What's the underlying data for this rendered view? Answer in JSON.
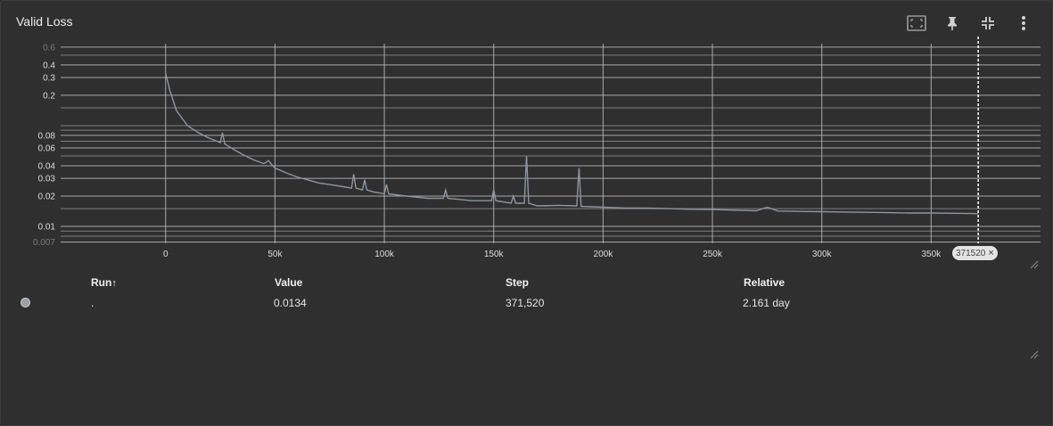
{
  "card": {
    "title": "Valid Loss"
  },
  "toolbar": {
    "icons": [
      "fit-to-data-icon",
      "pin-icon",
      "collapse-icon",
      "more-vertical-icon"
    ]
  },
  "colors": {
    "line": "#8e959e",
    "background": "#2f2f2f",
    "grid": "#bdbdbd"
  },
  "cursor_badge": {
    "label": "371520",
    "close": "×"
  },
  "runs_table": {
    "headers": {
      "run": "Run",
      "value": "Value",
      "step": "Step",
      "relative": "Relative"
    },
    "sort_arrow": "↑",
    "rows": [
      {
        "run": ".",
        "value": "0.0134",
        "step": "371,520",
        "relative": "2.161 day",
        "color": "#9aa0a6"
      }
    ]
  },
  "chart_data": {
    "type": "line",
    "title": "Valid Loss",
    "xlabel": "",
    "ylabel": "",
    "y_scale": "log",
    "xlim": [
      -48000,
      400000
    ],
    "ylim": [
      0.0068,
      0.65
    ],
    "x_ticks": [
      0,
      50000,
      100000,
      150000,
      200000,
      250000,
      300000,
      350000
    ],
    "x_tick_labels": [
      "0",
      "50k",
      "100k",
      "150k",
      "200k",
      "250k",
      "300k",
      "350k"
    ],
    "y_ticks": [
      0.6,
      0.4,
      0.3,
      0.2,
      0.08,
      0.06,
      0.04,
      0.03,
      0.02,
      0.01,
      0.007
    ],
    "y_tick_labels": [
      "0.6",
      "0.4",
      "0.3",
      "0.2",
      "0.08",
      "0.06",
      "0.04",
      "0.03",
      "0.02",
      "0.01",
      "0.007"
    ],
    "grid": true,
    "cursor_step": 371520,
    "series": [
      {
        "values_x": [
          0,
          2000,
          5000,
          10000,
          15000,
          20000,
          25000,
          26000,
          27000,
          30000,
          35000,
          40000,
          45000,
          47000,
          49000,
          50000,
          55000,
          60000,
          65000,
          70000,
          75000,
          80000,
          85000,
          86000,
          87000,
          90000,
          91000,
          92000,
          95000,
          100000,
          101000,
          102000,
          110000,
          120000,
          127000,
          128000,
          129000,
          140000,
          149000,
          150000,
          151000,
          158000,
          159000,
          160000,
          164000,
          165000,
          166000,
          170000,
          180000,
          188000,
          189000,
          190000,
          200000,
          210000,
          220000,
          230000,
          240000,
          250000,
          260000,
          270000,
          275000,
          280000,
          290000,
          300000,
          310000,
          320000,
          330000,
          340000,
          350000,
          360000,
          371520
        ],
        "values_y": [
          0.33,
          0.22,
          0.14,
          0.1,
          0.085,
          0.075,
          0.068,
          0.085,
          0.066,
          0.06,
          0.052,
          0.046,
          0.042,
          0.045,
          0.04,
          0.038,
          0.034,
          0.031,
          0.029,
          0.027,
          0.026,
          0.025,
          0.024,
          0.033,
          0.024,
          0.023,
          0.029,
          0.023,
          0.022,
          0.021,
          0.026,
          0.021,
          0.02,
          0.019,
          0.019,
          0.023,
          0.019,
          0.018,
          0.018,
          0.023,
          0.018,
          0.017,
          0.02,
          0.017,
          0.017,
          0.05,
          0.017,
          0.016,
          0.0162,
          0.016,
          0.038,
          0.0158,
          0.0155,
          0.0152,
          0.0152,
          0.015,
          0.0148,
          0.0147,
          0.0145,
          0.0143,
          0.0155,
          0.0142,
          0.0141,
          0.014,
          0.0139,
          0.0138,
          0.0137,
          0.0136,
          0.0136,
          0.0135,
          0.0134
        ]
      }
    ]
  }
}
